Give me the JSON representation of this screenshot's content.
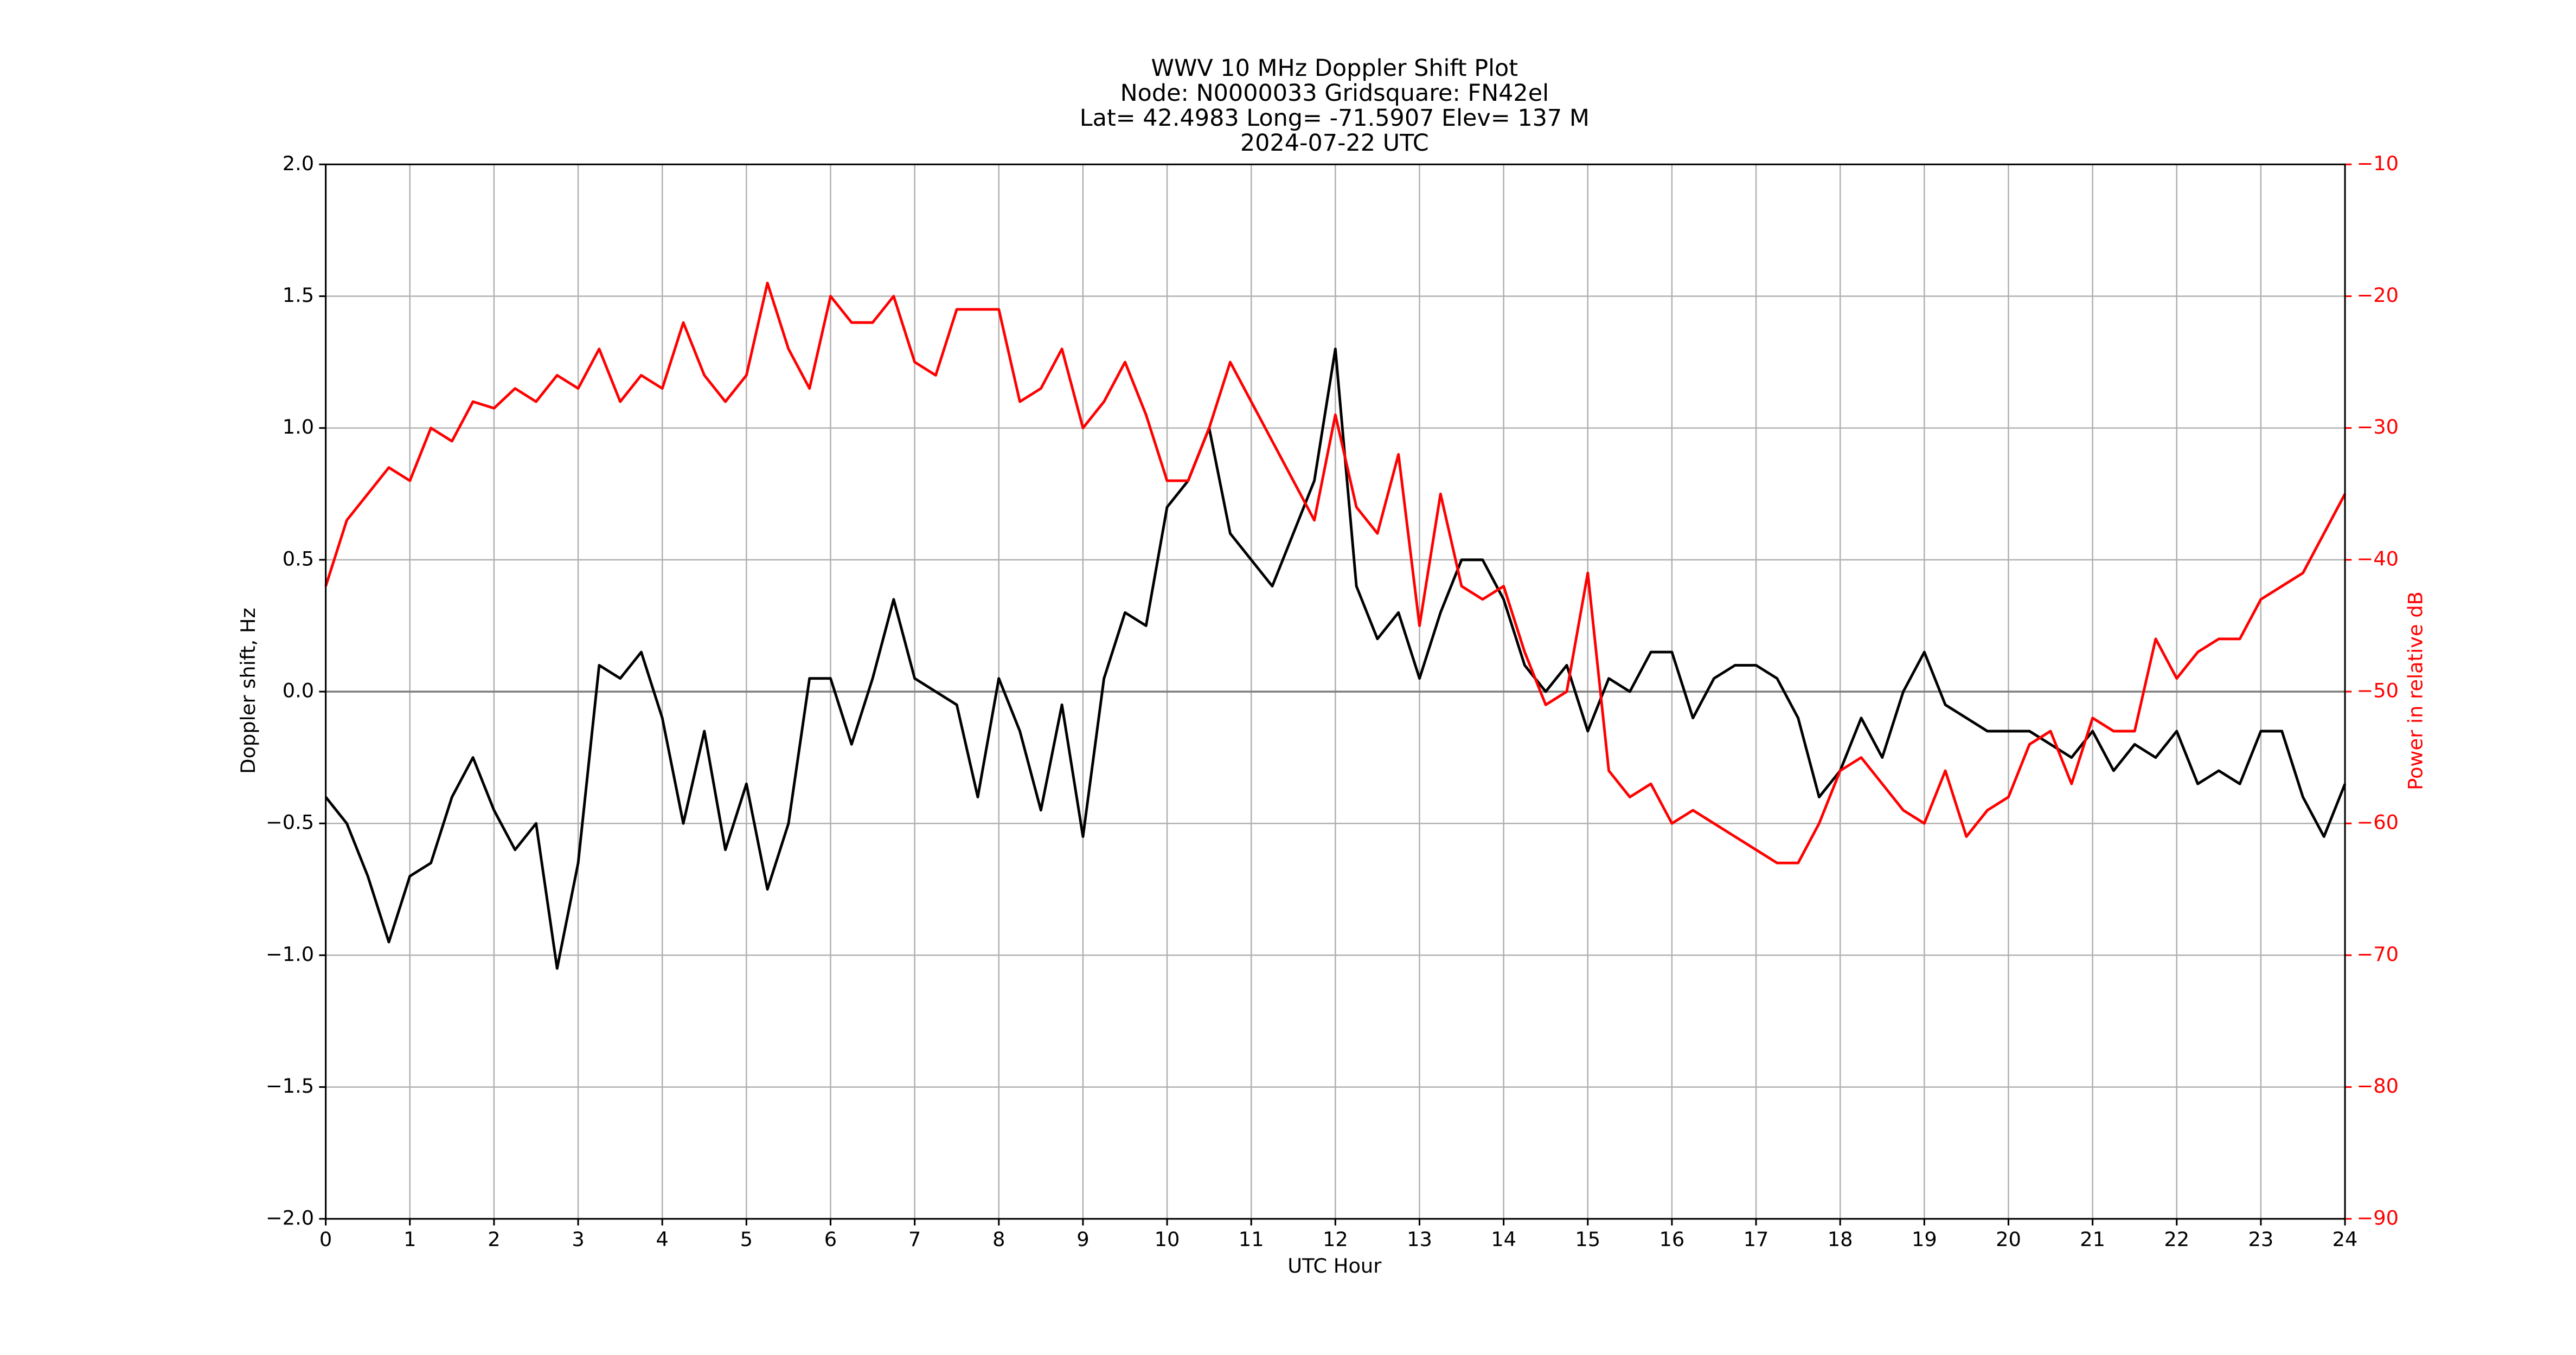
{
  "chart_data": {
    "type": "line",
    "title_lines": [
      "WWV 10 MHz Doppler Shift Plot",
      "Node:  N0000033     Gridsquare:  FN42el",
      "Lat= 42.4983    Long= -71.5907    Elev= 137 M",
      "2024-07-22  UTC"
    ],
    "x_label": "UTC Hour",
    "y_label": "Doppler shift, Hz",
    "y2_label": "Power in relative dB",
    "x": [
      0,
      0.25,
      0.5,
      0.75,
      1,
      1.25,
      1.5,
      1.75,
      2,
      2.25,
      2.5,
      2.75,
      3,
      3.25,
      3.5,
      3.75,
      4,
      4.25,
      4.5,
      4.75,
      5,
      5.25,
      5.5,
      5.75,
      6,
      6.25,
      6.5,
      6.75,
      7,
      7.25,
      7.5,
      7.75,
      8,
      8.25,
      8.5,
      8.75,
      9,
      9.25,
      9.5,
      9.75,
      10,
      10.25,
      10.5,
      10.75,
      11,
      11.25,
      11.5,
      11.75,
      12,
      12.25,
      12.5,
      12.75,
      13,
      13.25,
      13.5,
      13.75,
      14,
      14.25,
      14.5,
      14.75,
      15,
      15.25,
      15.5,
      15.75,
      16,
      16.25,
      16.5,
      16.75,
      17,
      17.25,
      17.5,
      17.75,
      18,
      18.25,
      18.5,
      18.75,
      19,
      19.25,
      19.5,
      19.75,
      20,
      20.25,
      20.5,
      20.75,
      21,
      21.25,
      21.5,
      21.75,
      22,
      22.25,
      22.5,
      22.75,
      23,
      23.25,
      23.5,
      23.75,
      24
    ],
    "series": [
      {
        "name": "Doppler shift",
        "color": "#000000",
        "axis": "y",
        "values": [
          -0.4,
          -0.5,
          -0.7,
          -0.95,
          -0.7,
          -0.65,
          -0.4,
          -0.25,
          -0.45,
          -0.6,
          -0.5,
          -1.05,
          -0.65,
          0.1,
          0.05,
          0.15,
          -0.1,
          -0.5,
          -0.15,
          -0.6,
          -0.35,
          -0.75,
          -0.5,
          0.05,
          0.05,
          -0.2,
          0.05,
          0.35,
          0.05,
          0,
          -0.05,
          -0.4,
          0.05,
          -0.15,
          -0.45,
          -0.05,
          -0.55,
          0.05,
          0.3,
          0.25,
          0.7,
          0.8,
          1.0,
          0.6,
          0.5,
          0.4,
          0.6,
          0.8,
          1.3,
          0.4,
          0.2,
          0.3,
          0.05,
          0.3,
          0.5,
          0.5,
          0.35,
          0.1,
          0.0,
          0.1,
          -0.15,
          0.05,
          0.0,
          0.15,
          0.15,
          -0.1,
          0.05,
          0.1,
          0.1,
          0.05,
          -0.1,
          -0.4,
          -0.3,
          -0.1,
          -0.25,
          0,
          0.15,
          -0.05,
          -0.1,
          -0.15,
          -0.15,
          -0.15,
          -0.2,
          -0.25,
          -0.15,
          -0.3,
          -0.2,
          -0.25,
          -0.15,
          -0.35,
          -0.3,
          -0.35,
          -0.15,
          -0.15,
          -0.4,
          -0.55,
          -0.35
        ]
      },
      {
        "name": "Power",
        "color": "#ff0000",
        "axis": "y2",
        "values": [
          -42,
          -37,
          -35,
          -33,
          -34,
          -30,
          -31,
          -28,
          -28.5,
          -27,
          -28,
          -26,
          -27,
          -24,
          -28,
          -26,
          -27,
          -22,
          -26,
          -28,
          -26,
          -19,
          -24,
          -27,
          -20,
          -22,
          -22,
          -20,
          -25,
          -26,
          -21,
          -21,
          -21,
          -28,
          -27,
          -24,
          -30,
          -28,
          -25,
          -29,
          -34,
          -34,
          -30,
          -25,
          -28,
          -31,
          -34,
          -37,
          -29,
          -36,
          -38,
          -32,
          -45,
          -35,
          -42,
          -43,
          -42,
          -47,
          -51,
          -50,
          -41,
          -56,
          -58,
          -57,
          -60,
          -59,
          -60,
          -61,
          -62,
          -63,
          -63,
          -60,
          -56,
          -55,
          -57,
          -59,
          -60,
          -56,
          -61,
          -59,
          -58,
          -54,
          -53,
          -57,
          -52,
          -53,
          -53,
          -46,
          -49,
          -47,
          -46,
          -46,
          -43,
          -42,
          -41,
          -38,
          -35
        ]
      }
    ],
    "xlim": [
      0,
      24
    ],
    "xticks": [
      0,
      1,
      2,
      3,
      4,
      5,
      6,
      7,
      8,
      9,
      10,
      11,
      12,
      13,
      14,
      15,
      16,
      17,
      18,
      19,
      20,
      21,
      22,
      23,
      24
    ],
    "ylim": [
      -2,
      2
    ],
    "yticks": [
      {
        "value": -2,
        "label": "−2.0"
      },
      {
        "value": -1.5,
        "label": "−1.5"
      },
      {
        "value": -1,
        "label": "−1.0"
      },
      {
        "value": -0.5,
        "label": "−0.5"
      },
      {
        "value": 0,
        "label": "0.0"
      },
      0.5,
      {
        "value": 1,
        "label": "1.0"
      },
      1.5,
      {
        "value": 2,
        "label": "2.0"
      }
    ],
    "y2lim": [
      -90,
      -10
    ],
    "y2ticks": [
      {
        "value": -90,
        "label": "−90"
      },
      {
        "value": -80,
        "label": "−80"
      },
      {
        "value": -70,
        "label": "−70"
      },
      {
        "value": -60,
        "label": "−60"
      },
      {
        "value": -50,
        "label": "−50"
      },
      {
        "value": -40,
        "label": "−40"
      },
      {
        "value": -30,
        "label": "−30"
      },
      {
        "value": -20,
        "label": "−20"
      },
      {
        "value": -10,
        "label": "−10"
      }
    ],
    "y2_color": "#ff0000",
    "grid": true
  }
}
